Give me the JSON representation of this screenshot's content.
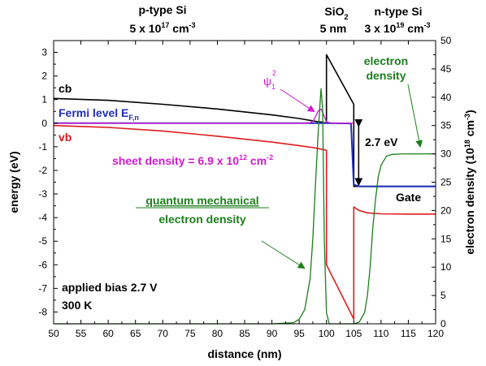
{
  "chart_data": {
    "type": "line",
    "title": "",
    "xlabel": "distance (nm)",
    "ylabel_left": "energy (eV)",
    "ylabel_right_main": "electron density (10",
    "ylabel_right_sup": "18",
    "ylabel_right_tail": " cm",
    "ylabel_right_sup2": "-3",
    "ylabel_right_end": ")",
    "xlim": [
      50,
      120
    ],
    "ylim_left": [
      -8.5,
      3.5
    ],
    "ylim_right": [
      0,
      50
    ],
    "grid": false,
    "x_ticks": [
      50,
      55,
      60,
      65,
      70,
      75,
      80,
      85,
      90,
      95,
      100,
      105,
      110,
      115,
      120
    ],
    "y_left_ticks": [
      3,
      2,
      1,
      0,
      -1,
      -2,
      -3,
      -4,
      -5,
      -6,
      -7,
      -8
    ],
    "y_right_ticks": [
      0,
      5,
      10,
      15,
      20,
      25,
      30,
      35,
      40,
      45,
      50
    ],
    "colors": {
      "cb": "#000000",
      "vb": "#dd1c1c",
      "fermi": "#1f2fb8",
      "psi": "#d21ad2",
      "density": "#1c7f1c",
      "annotation": "#000000"
    },
    "series": [
      {
        "name": "cb",
        "key": "cb",
        "axis": "left",
        "x": [
          50,
          60,
          70,
          80,
          90,
          95,
          98,
          99,
          99.5,
          100,
          100,
          105,
          105,
          110,
          115,
          120
        ],
        "y": [
          1.05,
          0.97,
          0.8,
          0.6,
          0.35,
          0.2,
          0.08,
          0.05,
          0.02,
          0.02,
          2.9,
          0.8,
          -2.68,
          -2.68,
          -2.68,
          -2.68
        ]
      },
      {
        "name": "vb",
        "key": "vb",
        "axis": "left",
        "x": [
          50,
          60,
          70,
          80,
          90,
          95,
          98,
          99,
          99.5,
          100,
          100,
          105,
          105,
          106,
          107.5,
          110,
          115,
          120
        ],
        "y": [
          -0.1,
          -0.18,
          -0.33,
          -0.55,
          -0.8,
          -0.95,
          -1.05,
          -1.1,
          -1.12,
          -1.15,
          -6.0,
          -8.3,
          -3.55,
          -3.7,
          -3.8,
          -3.84,
          -3.85,
          -3.85
        ]
      },
      {
        "name": "Fermi level",
        "key": "fermi",
        "axis": "left",
        "x": [
          50,
          70,
          90,
          100,
          104.5,
          105,
          106,
          110,
          120
        ],
        "y": [
          0,
          0,
          0,
          0,
          -0.01,
          -2.6,
          -2.68,
          -2.68,
          -2.68
        ]
      },
      {
        "name": "ψ1²",
        "key": "psi",
        "axis": "left",
        "x": [
          50,
          96,
          97,
          97.5,
          98,
          98.5,
          99,
          99.5,
          100,
          101,
          104,
          105
        ],
        "y": [
          0,
          0,
          0.02,
          0.08,
          0.28,
          0.52,
          0.6,
          0.35,
          0.05,
          0.0,
          0,
          0
        ]
      },
      {
        "name": "quantum mechanical electron density (left)",
        "key": "density",
        "axis": "right",
        "x": [
          50,
          90,
          94,
          95,
          96,
          97,
          97.5,
          98,
          98.5,
          99,
          99.3,
          99.6,
          100,
          100.5,
          105
        ],
        "y": [
          0,
          0,
          0.2,
          0.8,
          2.5,
          8,
          15,
          25,
          34,
          41.5,
          38,
          15,
          2,
          0,
          0
        ]
      },
      {
        "name": "electron density (right)",
        "key": "density",
        "axis": "right",
        "x": [
          105,
          106,
          107,
          107.5,
          108,
          108.5,
          109,
          109.5,
          110,
          111,
          112,
          114,
          120
        ],
        "y": [
          0,
          0.3,
          2,
          5,
          10,
          17,
          22,
          26,
          28,
          29.6,
          29.9,
          30,
          30
        ]
      }
    ],
    "arrow_2_7eV": {
      "x": 105.9,
      "y_top": 0,
      "y_bottom": -2.7
    },
    "annotations": {
      "p_type_title": "p-type Si",
      "p_type_conc_base": "5 x 10",
      "p_type_conc_exp": "17",
      "p_type_conc_unit": " cm",
      "p_type_conc_unit_exp": "-3",
      "sio2_base": "SiO",
      "sio2_sub": "2",
      "sio2_thickness": "5 nm",
      "n_type_title": "n-type Si",
      "n_type_conc_base": "3 x 10",
      "n_type_conc_exp": "19",
      "n_type_conc_unit": " cm",
      "n_type_conc_unit_exp": "-3",
      "cb_label": "cb",
      "vb_label": "vb",
      "fermi_label": "Fermi level E",
      "fermi_sub": "F,n",
      "psi_base": "ψ",
      "psi_sub": "1",
      "psi_sup": "2",
      "sheet_density_base": "sheet density = 6.9 x 10",
      "sheet_density_exp": "12",
      "sheet_density_unit": " cm",
      "sheet_density_unit_exp": "-2",
      "electron_density_line1": "electron",
      "electron_density_line2": "density",
      "ev_gap": "2.7 eV",
      "gate": "Gate",
      "qm_line1": "quantum mechanical",
      "qm_line2": "electron density",
      "bias": "applied bias 2.7 V",
      "temperature": "300 K"
    }
  }
}
